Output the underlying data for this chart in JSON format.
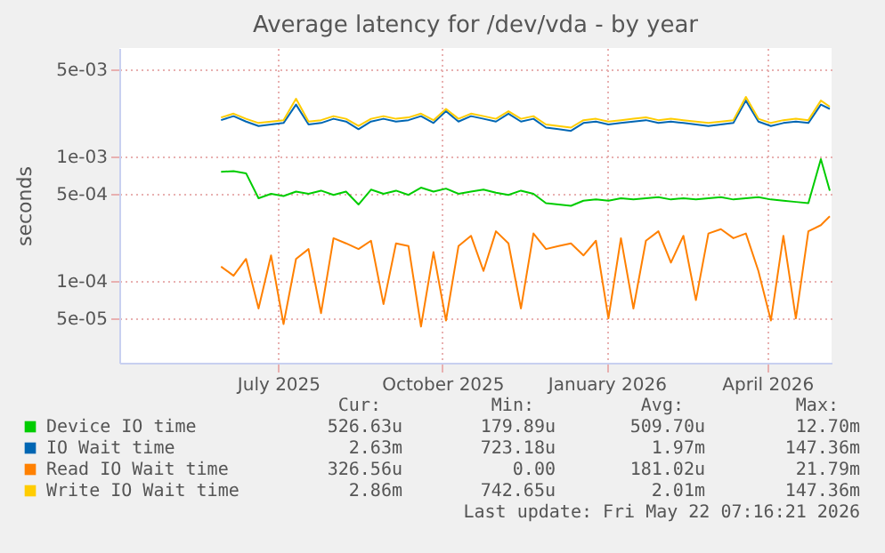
{
  "chart_data": {
    "type": "line",
    "title": "Average latency for /dev/vda - by year",
    "ylabel": "seconds",
    "log": "y",
    "grid": true,
    "legend": "bottom",
    "marker": "none",
    "line_style": "solid",
    "xlim": [
      "2025-04-18",
      "2026-05-22"
    ],
    "xticks": [
      {
        "value": "2025-07-16",
        "label": "July 2025"
      },
      {
        "value": "2025-10-16",
        "label": "October 2025"
      },
      {
        "value": "2026-01-16",
        "label": "January 2026"
      },
      {
        "value": "2026-04-16",
        "label": "April 2026"
      }
    ],
    "ylim": [
      2.2e-05,
      0.0074
    ],
    "yticks": [
      {
        "value": 5e-05,
        "label": "5e-05"
      },
      {
        "value": 0.0001,
        "label": "1e-04"
      },
      {
        "value": 0.0005,
        "label": "5e-04"
      },
      {
        "value": 0.001,
        "label": "1e-03"
      },
      {
        "value": 0.005,
        "label": "5e-03"
      }
    ],
    "x": [
      "2025-06-14",
      "2025-06-21",
      "2025-06-28",
      "2025-07-05",
      "2025-07-12",
      "2025-07-19",
      "2025-07-26",
      "2025-08-02",
      "2025-08-09",
      "2025-08-16",
      "2025-08-23",
      "2025-08-30",
      "2025-09-06",
      "2025-09-13",
      "2025-09-20",
      "2025-09-27",
      "2025-10-04",
      "2025-10-11",
      "2025-10-18",
      "2025-10-25",
      "2025-11-01",
      "2025-11-08",
      "2025-11-15",
      "2025-11-22",
      "2025-11-29",
      "2025-12-06",
      "2025-12-13",
      "2025-12-20",
      "2025-12-27",
      "2026-01-03",
      "2026-01-10",
      "2026-01-17",
      "2026-01-24",
      "2026-01-31",
      "2026-02-07",
      "2026-02-14",
      "2026-02-21",
      "2026-02-28",
      "2026-03-07",
      "2026-03-14",
      "2026-03-21",
      "2026-03-28",
      "2026-04-04",
      "2026-04-11",
      "2026-04-18",
      "2026-04-25",
      "2026-05-02",
      "2026-05-09",
      "2026-05-16",
      "2026-05-21"
    ],
    "series": [
      {
        "name": "Device IO time",
        "color": "#00cc00",
        "values": [
          0.00075,
          0.00076,
          0.00073,
          0.00046,
          0.0005,
          0.00048,
          0.00052,
          0.0005,
          0.00053,
          0.00049,
          0.00052,
          0.00041,
          0.00054,
          0.0005,
          0.00053,
          0.00049,
          0.00056,
          0.00052,
          0.00055,
          0.0005,
          0.00052,
          0.00054,
          0.00051,
          0.00049,
          0.00053,
          0.0005,
          0.00042,
          0.00041,
          0.0004,
          0.00044,
          0.00045,
          0.00044,
          0.00046,
          0.00045,
          0.00046,
          0.00047,
          0.00045,
          0.00046,
          0.00045,
          0.00046,
          0.00047,
          0.00045,
          0.00046,
          0.00047,
          0.00045,
          0.00044,
          0.00043,
          0.00042,
          0.00095,
          0.00053
        ]
      },
      {
        "name": "IO Wait time",
        "color": "#0066b3",
        "values": [
          0.00195,
          0.0021,
          0.0019,
          0.00175,
          0.0018,
          0.00185,
          0.0026,
          0.0018,
          0.00185,
          0.002,
          0.0019,
          0.00165,
          0.0019,
          0.002,
          0.0019,
          0.00195,
          0.0021,
          0.00185,
          0.0023,
          0.0019,
          0.0021,
          0.002,
          0.0019,
          0.0022,
          0.0019,
          0.002,
          0.0017,
          0.00165,
          0.0016,
          0.00185,
          0.0019,
          0.0018,
          0.00185,
          0.0019,
          0.00195,
          0.00185,
          0.0019,
          0.00185,
          0.0018,
          0.00175,
          0.0018,
          0.00185,
          0.0028,
          0.0019,
          0.00175,
          0.00185,
          0.0019,
          0.00185,
          0.0026,
          0.0024
        ]
      },
      {
        "name": "Read IO Wait time",
        "color": "#ff8000",
        "values": [
          0.00013,
          0.00011,
          0.00015,
          6e-05,
          0.00016,
          4.5e-05,
          0.00015,
          0.00018,
          5.5e-05,
          0.00022,
          0.0002,
          0.00018,
          0.00021,
          6.5e-05,
          0.0002,
          0.00019,
          4.3e-05,
          0.00017,
          4.8e-05,
          0.00019,
          0.00023,
          0.00012,
          0.00025,
          0.0002,
          6e-05,
          0.00024,
          0.00018,
          0.00019,
          0.0002,
          0.00016,
          0.00021,
          5e-05,
          0.00022,
          6e-05,
          0.00021,
          0.00025,
          0.00014,
          0.00023,
          7e-05,
          0.00024,
          0.00026,
          0.00022,
          0.00024,
          0.00012,
          4.8e-05,
          0.00023,
          5e-05,
          0.00025,
          0.00028,
          0.00033
        ]
      },
      {
        "name": "Write IO Wait time",
        "color": "#ffcc00",
        "values": [
          0.00205,
          0.0022,
          0.002,
          0.00185,
          0.0019,
          0.00195,
          0.0029,
          0.0019,
          0.00195,
          0.0021,
          0.002,
          0.00175,
          0.002,
          0.0021,
          0.002,
          0.00205,
          0.0022,
          0.00195,
          0.0024,
          0.002,
          0.0022,
          0.0021,
          0.002,
          0.0023,
          0.002,
          0.0021,
          0.0018,
          0.00175,
          0.0017,
          0.00195,
          0.002,
          0.0019,
          0.00195,
          0.002,
          0.00205,
          0.00195,
          0.002,
          0.00195,
          0.0019,
          0.00185,
          0.0019,
          0.00195,
          0.003,
          0.002,
          0.00185,
          0.00195,
          0.002,
          0.00195,
          0.0028,
          0.0025
        ]
      }
    ],
    "annotations": [
      "Cur:",
      "Min:",
      "Avg:",
      "Max:",
      "526.63u",
      "179.89u",
      "509.70u",
      "12.70m",
      "2.63m",
      "723.18u",
      "1.97m",
      "147.36m",
      "326.56u",
      "0.00",
      "181.02u",
      "21.79m",
      "2.86m",
      "742.65u",
      "2.01m",
      "147.36m",
      "Last update: Fri May 22 07:16:21 2026"
    ]
  }
}
